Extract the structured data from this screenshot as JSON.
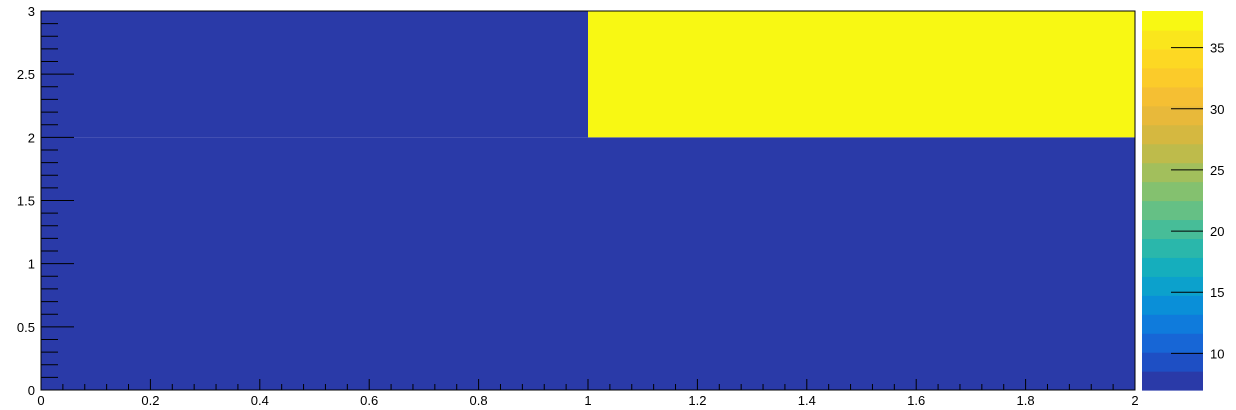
{
  "chart_data": {
    "type": "heatmap",
    "title": "",
    "xlabel": "",
    "ylabel": "",
    "x_edges": [
      0,
      1,
      2
    ],
    "y_edges": [
      0,
      2,
      3
    ],
    "values": [
      [
        7,
        7
      ],
      [
        7,
        38
      ]
    ],
    "xlim": [
      0,
      2
    ],
    "ylim": [
      0,
      3
    ],
    "x_ticks": [
      0,
      0.2,
      0.4,
      0.6,
      0.8,
      1,
      1.2,
      1.4,
      1.6,
      1.8,
      2
    ],
    "x_tick_labels": [
      "0",
      "0.2",
      "0.4",
      "0.6",
      "0.8",
      "1",
      "1.2",
      "1.4",
      "1.6",
      "1.8",
      "2"
    ],
    "y_ticks": [
      0,
      0.5,
      1,
      1.5,
      2,
      2.5,
      3
    ],
    "y_tick_labels": [
      "0",
      "0.5",
      "1",
      "1.5",
      "2",
      "2.5",
      "3"
    ],
    "colorbar": {
      "zlim": [
        7,
        38
      ],
      "ticks": [
        10,
        15,
        20,
        25,
        30,
        35
      ],
      "tick_labels": [
        "10",
        "15",
        "20",
        "25",
        "30",
        "35"
      ],
      "colors": [
        "#2a3aa8",
        "#1e4fc4",
        "#1766d6",
        "#0f7bdc",
        "#0a8fd8",
        "#0ca1cc",
        "#15aebd",
        "#2ab7ab",
        "#47bd98",
        "#65c085",
        "#84c16f",
        "#a2bf5c",
        "#bebb4b",
        "#d5b840",
        "#e8b93a",
        "#f5bf33",
        "#fbcb2a",
        "#fdd823",
        "#fae61c",
        "#f8f813"
      ]
    },
    "grid": false,
    "legend": "none"
  }
}
